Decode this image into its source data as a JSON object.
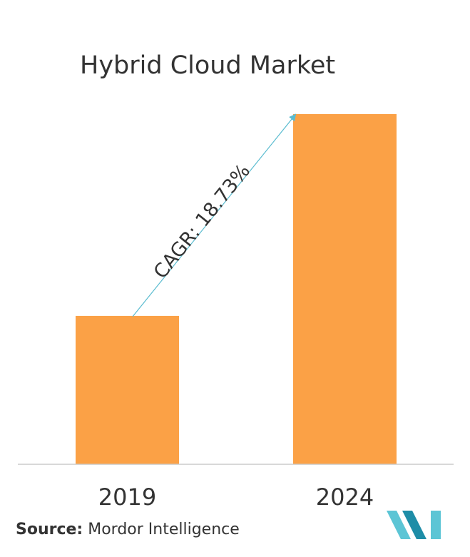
{
  "colors": {
    "bar": "#FBA146",
    "axis": "#CCCCCC",
    "arrow": "#5BBCD0",
    "text": "#333333",
    "logo_light": "#5CC5D5",
    "logo_dark": "#1E8DA7"
  },
  "source": {
    "label": "Source:",
    "text": " Mordor Intelligence"
  },
  "logo": {
    "icon": "mordor-intelligence-logo-icon"
  },
  "chart_data": {
    "type": "bar",
    "title": "Hybrid Cloud Market",
    "categories": [
      "2019",
      "2024"
    ],
    "values": [
      1.0,
      2.36
    ],
    "ylim": [
      0,
      2.6
    ],
    "grid": false,
    "annotation": {
      "text": "CAGR: 18.73%",
      "from": "2019",
      "to": "2024"
    }
  }
}
